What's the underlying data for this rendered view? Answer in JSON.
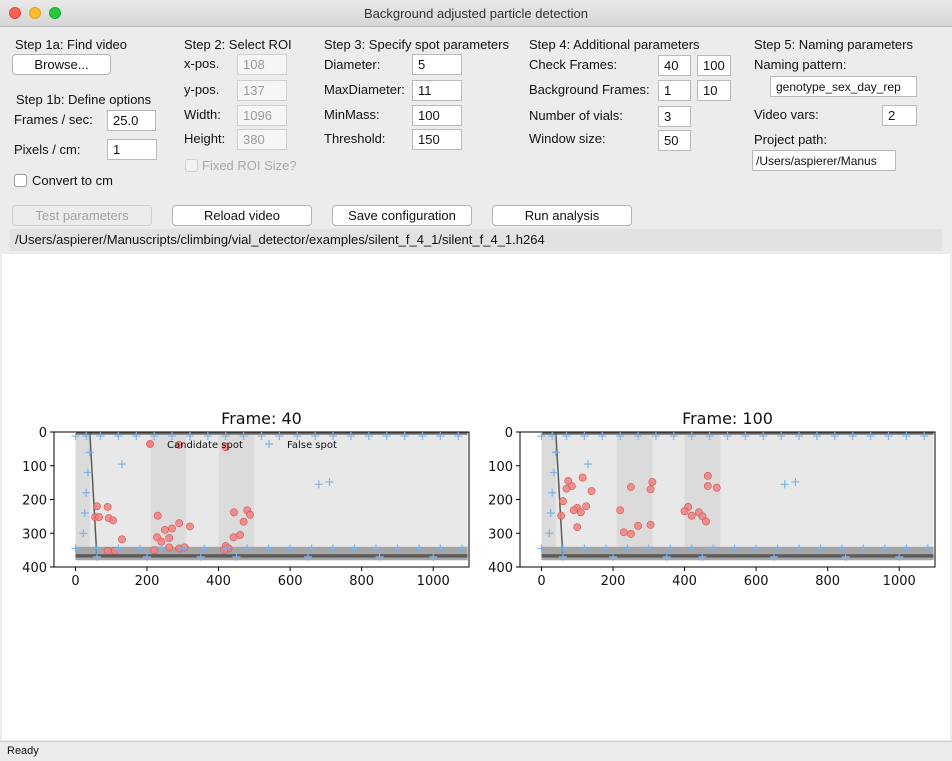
{
  "window": {
    "title": "Background adjusted particle detection"
  },
  "step1a": {
    "heading": "Step 1a: Find video",
    "browse_label": "Browse..."
  },
  "step1b": {
    "heading": "Step 1b: Define options",
    "fps_label": "Frames / sec:",
    "fps_value": "25.0",
    "px_label": "Pixels / cm:",
    "px_value": "1",
    "convert_label": "Convert to cm"
  },
  "step2": {
    "heading": "Step 2: Select ROI",
    "xpos_label": "x-pos.",
    "xpos_value": "108",
    "ypos_label": "y-pos.",
    "ypos_value": "137",
    "width_label": "Width:",
    "width_value": "1096",
    "height_label": "Height:",
    "height_value": "380",
    "fixed_label": "Fixed ROI Size?"
  },
  "step3": {
    "heading": "Step 3: Specify spot parameters",
    "diameter_label": "Diameter:",
    "diameter_value": "5",
    "maxdiameter_label": "MaxDiameter:",
    "maxdiameter_value": "11",
    "minmass_label": "MinMass:",
    "minmass_value": "100",
    "threshold_label": "Threshold:",
    "threshold_value": "150"
  },
  "step4": {
    "heading": "Step 4: Additional parameters",
    "check_label": "Check Frames:",
    "check_value_1": "40",
    "check_value_2": "100",
    "bg_label": "Background Frames:",
    "bg_value_1": "1",
    "bg_value_2": "10",
    "vials_label": "Number of vials:",
    "vials_value": "3",
    "window_label": "Window size:",
    "window_value": "50"
  },
  "step5": {
    "heading": "Step 5: Naming parameters",
    "pattern_label": "Naming pattern:",
    "pattern_value": "genotype_sex_day_rep",
    "vars_label": "Video vars:",
    "vars_value": "2",
    "project_label": "Project path:",
    "project_value": "/Users/aspierer/Manus"
  },
  "actions": {
    "test_label": "Test parameters",
    "reload_label": "Reload video",
    "save_label": "Save configuration",
    "run_label": "Run analysis"
  },
  "video_path": "/Users/aspierer/Manuscripts/climbing/vial_detector/examples/silent_f_4_1/silent_f_4_1.h264",
  "status": "Ready",
  "colors": {
    "candidate": "#f08080",
    "false_spot": "#7fb2e5"
  },
  "chart_data": [
    {
      "type": "scatter",
      "title": "Frame: 40",
      "xlim": [
        -60,
        1100
      ],
      "ylim": [
        400,
        0
      ],
      "xticks": [
        "0",
        "200",
        "400",
        "600",
        "800",
        "1000"
      ],
      "yticks": [
        "0",
        "100",
        "200",
        "300",
        "400"
      ],
      "legend": {
        "placement": "top",
        "entries": [
          "Candidate spot",
          "False spot"
        ]
      },
      "series": [
        {
          "name": "Candidate spot",
          "points": [
            [
              290,
              38
            ],
            [
              420,
              45
            ],
            [
              60,
              220
            ],
            [
              90,
              222
            ],
            [
              55,
              252
            ],
            [
              66,
              252
            ],
            [
              93,
              255
            ],
            [
              105,
              262
            ],
            [
              130,
              318
            ],
            [
              90,
              352
            ],
            [
              110,
              352
            ],
            [
              230,
              248
            ],
            [
              290,
              270
            ],
            [
              320,
              280
            ],
            [
              270,
              286
            ],
            [
              250,
              290
            ],
            [
              228,
              312
            ],
            [
              262,
              314
            ],
            [
              240,
              325
            ],
            [
              262,
              342
            ],
            [
              290,
              345
            ],
            [
              305,
              342
            ],
            [
              220,
              350
            ],
            [
              470,
              266
            ],
            [
              443,
              238
            ],
            [
              480,
              232
            ],
            [
              488,
              245
            ],
            [
              460,
              305
            ],
            [
              442,
              312
            ],
            [
              420,
              338
            ],
            [
              428,
              345
            ],
            [
              415,
              350
            ]
          ]
        },
        {
          "name": "False spot",
          "points": [
            [
              0,
              12
            ],
            [
              30,
              12
            ],
            [
              70,
              12
            ],
            [
              120,
              12
            ],
            [
              170,
              12
            ],
            [
              220,
              12
            ],
            [
              270,
              12
            ],
            [
              320,
              12
            ],
            [
              370,
              12
            ],
            [
              420,
              12
            ],
            [
              470,
              12
            ],
            [
              520,
              12
            ],
            [
              570,
              12
            ],
            [
              620,
              12
            ],
            [
              670,
              12
            ],
            [
              720,
              12
            ],
            [
              770,
              12
            ],
            [
              820,
              12
            ],
            [
              870,
              12
            ],
            [
              920,
              12
            ],
            [
              970,
              12
            ],
            [
              1020,
              12
            ],
            [
              1070,
              12
            ],
            [
              40,
              60
            ],
            [
              35,
              120
            ],
            [
              30,
              180
            ],
            [
              26,
              240
            ],
            [
              22,
              300
            ],
            [
              130,
              95
            ],
            [
              680,
              155
            ],
            [
              710,
              148
            ],
            [
              0,
              345
            ],
            [
              60,
              345
            ],
            [
              120,
              345
            ],
            [
              180,
              345
            ],
            [
              240,
              345
            ],
            [
              300,
              345
            ],
            [
              360,
              345
            ],
            [
              420,
              345
            ],
            [
              480,
              345
            ],
            [
              540,
              345
            ],
            [
              600,
              345
            ],
            [
              660,
              345
            ],
            [
              720,
              345
            ],
            [
              780,
              345
            ],
            [
              840,
              345
            ],
            [
              900,
              345
            ],
            [
              960,
              345
            ],
            [
              1020,
              345
            ],
            [
              1080,
              345
            ],
            [
              60,
              370
            ],
            [
              200,
              370
            ],
            [
              350,
              370
            ],
            [
              450,
              370
            ],
            [
              650,
              370
            ],
            [
              850,
              370
            ],
            [
              1000,
              370
            ]
          ]
        }
      ]
    },
    {
      "type": "scatter",
      "title": "Frame: 100",
      "xlim": [
        -60,
        1100
      ],
      "ylim": [
        400,
        0
      ],
      "xticks": [
        "0",
        "200",
        "400",
        "600",
        "800",
        "1000"
      ],
      "yticks": [
        "0",
        "100",
        "200",
        "300",
        "400"
      ],
      "series": [
        {
          "name": "Candidate spot",
          "points": [
            [
              75,
              145
            ],
            [
              85,
              160
            ],
            [
              70,
              168
            ],
            [
              115,
              135
            ],
            [
              140,
              175
            ],
            [
              60,
              205
            ],
            [
              100,
              225
            ],
            [
              125,
              220
            ],
            [
              90,
              232
            ],
            [
              110,
              238
            ],
            [
              55,
              248
            ],
            [
              100,
              282
            ],
            [
              250,
              163
            ],
            [
              310,
              148
            ],
            [
              305,
              170
            ],
            [
              220,
              232
            ],
            [
              270,
              278
            ],
            [
              230,
              297
            ],
            [
              250,
              302
            ],
            [
              305,
              275
            ],
            [
              465,
              130
            ],
            [
              465,
              160
            ],
            [
              490,
              165
            ],
            [
              410,
              222
            ],
            [
              420,
              248
            ],
            [
              400,
              235
            ],
            [
              440,
              238
            ],
            [
              450,
              250
            ],
            [
              460,
              265
            ]
          ]
        },
        {
          "name": "False spot",
          "points": [
            [
              0,
              12
            ],
            [
              30,
              12
            ],
            [
              70,
              12
            ],
            [
              120,
              12
            ],
            [
              170,
              12
            ],
            [
              220,
              12
            ],
            [
              270,
              12
            ],
            [
              320,
              12
            ],
            [
              370,
              12
            ],
            [
              420,
              12
            ],
            [
              470,
              12
            ],
            [
              520,
              12
            ],
            [
              570,
              12
            ],
            [
              620,
              12
            ],
            [
              670,
              12
            ],
            [
              720,
              12
            ],
            [
              770,
              12
            ],
            [
              820,
              12
            ],
            [
              870,
              12
            ],
            [
              920,
              12
            ],
            [
              970,
              12
            ],
            [
              1020,
              12
            ],
            [
              1070,
              12
            ],
            [
              40,
              60
            ],
            [
              35,
              120
            ],
            [
              30,
              180
            ],
            [
              26,
              240
            ],
            [
              22,
              300
            ],
            [
              130,
              95
            ],
            [
              680,
              155
            ],
            [
              710,
              148
            ],
            [
              0,
              345
            ],
            [
              60,
              345
            ],
            [
              120,
              345
            ],
            [
              180,
              345
            ],
            [
              240,
              345
            ],
            [
              300,
              345
            ],
            [
              360,
              345
            ],
            [
              420,
              345
            ],
            [
              480,
              345
            ],
            [
              540,
              345
            ],
            [
              600,
              345
            ],
            [
              660,
              345
            ],
            [
              720,
              345
            ],
            [
              780,
              345
            ],
            [
              840,
              345
            ],
            [
              900,
              345
            ],
            [
              960,
              345
            ],
            [
              1020,
              345
            ],
            [
              1080,
              345
            ],
            [
              60,
              370
            ],
            [
              200,
              370
            ],
            [
              350,
              370
            ],
            [
              450,
              370
            ],
            [
              650,
              370
            ],
            [
              850,
              370
            ],
            [
              1000,
              370
            ]
          ]
        }
      ]
    }
  ]
}
